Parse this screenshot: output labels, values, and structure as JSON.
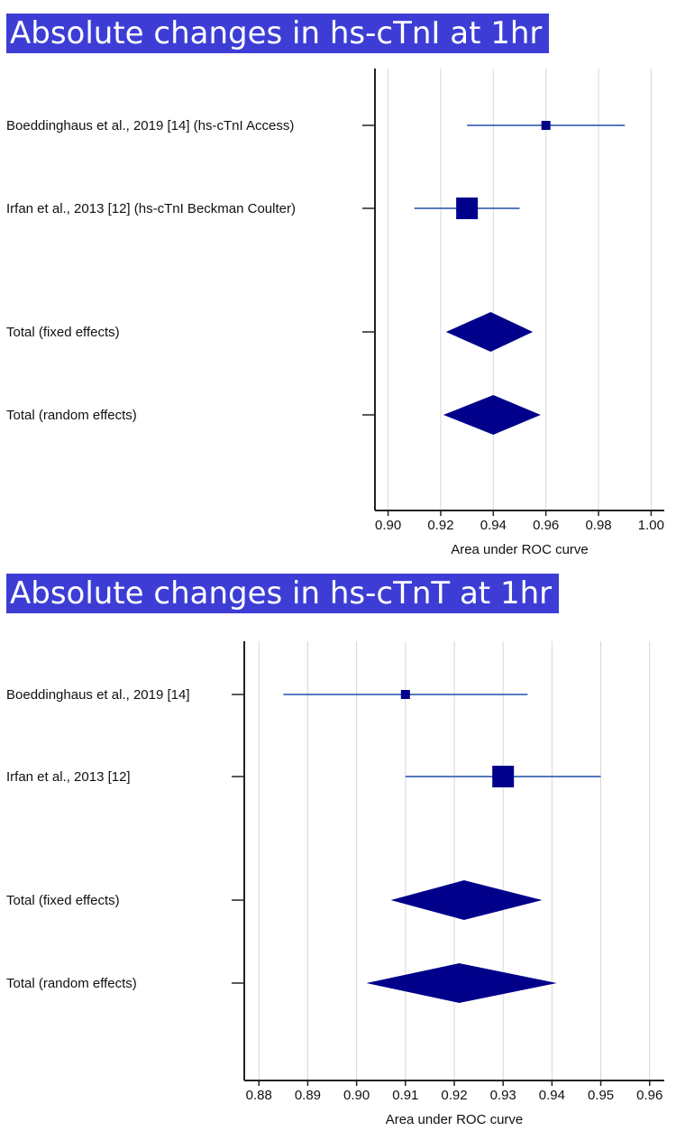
{
  "chart_data": [
    {
      "type": "forest",
      "title": "Absolute changes in hs-cTnI at 1hr",
      "xlabel": "Area under ROC curve",
      "xlim": [
        0.895,
        1.005
      ],
      "ticks": [
        "0.90",
        "0.92",
        "0.94",
        "0.96",
        "0.98",
        "1.00"
      ],
      "grid": true,
      "color": "#00008b",
      "studies": [
        {
          "label": "Boeddinghaus et al., 2019 [14] (hs-cTnI Access)",
          "estimate": 0.96,
          "lower": 0.93,
          "upper": 0.99,
          "weight": "small"
        },
        {
          "label": "Irfan et al., 2013 [12] (hs-cTnI Beckman Coulter)",
          "estimate": 0.93,
          "lower": 0.91,
          "upper": 0.95,
          "weight": "large"
        }
      ],
      "totals": [
        {
          "label": "Total (fixed effects)",
          "estimate": 0.939,
          "lower": 0.922,
          "upper": 0.955
        },
        {
          "label": "Total (random effects)",
          "estimate": 0.94,
          "lower": 0.921,
          "upper": 0.958
        }
      ]
    },
    {
      "type": "forest",
      "title": "Absolute changes in hs-cTnT at 1hr",
      "xlabel": "Area under ROC curve",
      "xlim": [
        0.877,
        0.963
      ],
      "ticks": [
        "0.88",
        "0.89",
        "0.90",
        "0.91",
        "0.92",
        "0.93",
        "0.94",
        "0.95",
        "0.96"
      ],
      "grid": true,
      "color": "#00008b",
      "studies": [
        {
          "label": "Boeddinghaus et al., 2019 [14]",
          "estimate": 0.91,
          "lower": 0.885,
          "upper": 0.935,
          "weight": "small"
        },
        {
          "label": "Irfan et al., 2013 [12]",
          "estimate": 0.93,
          "lower": 0.91,
          "upper": 0.95,
          "weight": "large"
        }
      ],
      "totals": [
        {
          "label": "Total (fixed effects)",
          "estimate": 0.922,
          "lower": 0.907,
          "upper": 0.938
        },
        {
          "label": "Total (random effects)",
          "estimate": 0.921,
          "lower": 0.902,
          "upper": 0.941
        }
      ]
    }
  ]
}
